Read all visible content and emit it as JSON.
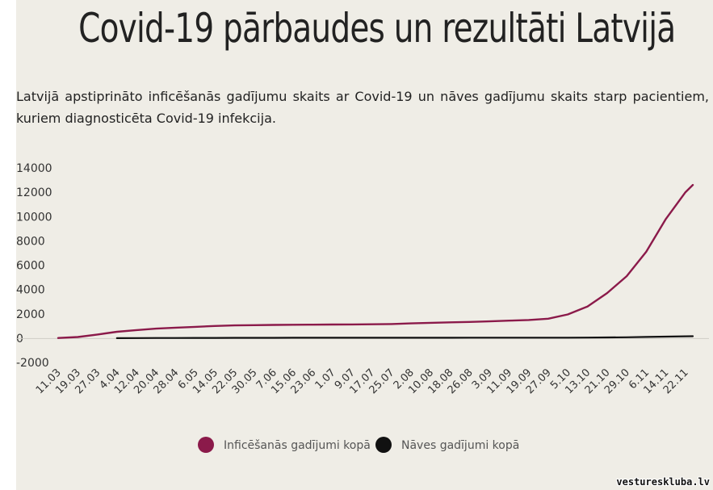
{
  "header": {
    "title": "Covid-19 pārbaudes un rezultāti Latvijā",
    "subtitle": "Latvijā apstiprināto inficēšanās gadījumu skaits ar Covid-19 un nāves gadījumu skaits starp pacientiem, kuriem diagnosticēta Covid-19 infekcija."
  },
  "watermark": "vestureskluba.lv",
  "chart_data": {
    "type": "line",
    "title": "Covid-19 pārbaudes un rezultāti Latvijā",
    "xlabel": "",
    "ylabel": "",
    "ylim": [
      -2000,
      14000
    ],
    "yticks": [
      "14000",
      "12000",
      "10000",
      "8000",
      "6000",
      "4000",
      "2000",
      "0",
      "-2000"
    ],
    "xticks": [
      "11.03",
      "19.03",
      "27.03",
      "4.04",
      "12.04",
      "20.04",
      "28.04",
      "6.05",
      "14.05",
      "22.05",
      "30.05",
      "7.06",
      "15.06",
      "23.06",
      "1.07",
      "9.07",
      "17.07",
      "25.07",
      "2.08",
      "10.08",
      "18.08",
      "26.08",
      "3.09",
      "11.09",
      "19.09",
      "27.09",
      "5.10",
      "13.10",
      "21.10",
      "29.10",
      "6.11",
      "14.11",
      "22.11"
    ],
    "grid": false,
    "legend_position": "bottom",
    "series": [
      {
        "name": "Inficēšanās gadījumi kopā",
        "color": "#8b1a4a",
        "x": [
          "11.03",
          "19.03",
          "27.03",
          "4.04",
          "12.04",
          "20.04",
          "28.04",
          "6.05",
          "14.05",
          "22.05",
          "30.05",
          "7.06",
          "15.06",
          "23.06",
          "1.07",
          "9.07",
          "17.07",
          "25.07",
          "2.08",
          "10.08",
          "18.08",
          "26.08",
          "3.09",
          "11.09",
          "19.09",
          "27.09",
          "5.10",
          "13.10",
          "21.10",
          "29.10",
          "6.11",
          "14.11",
          "22.11",
          "25.11"
        ],
        "values": [
          10,
          90,
          300,
          520,
          660,
          780,
          860,
          930,
          1000,
          1050,
          1070,
          1090,
          1100,
          1110,
          1120,
          1130,
          1140,
          1160,
          1210,
          1260,
          1300,
          1330,
          1380,
          1440,
          1490,
          1600,
          1950,
          2600,
          3700,
          5100,
          7100,
          9800,
          12000,
          12600
        ]
      },
      {
        "name": "Nāves gadījumi kopā",
        "color": "#111111",
        "x": [
          "11.03",
          "19.03",
          "27.03",
          "4.04",
          "12.04",
          "20.04",
          "28.04",
          "6.05",
          "14.05",
          "22.05",
          "30.05",
          "7.06",
          "15.06",
          "23.06",
          "1.07",
          "9.07",
          "17.07",
          "25.07",
          "2.08",
          "10.08",
          "18.08",
          "26.08",
          "3.09",
          "11.09",
          "19.09",
          "27.09",
          "5.10",
          "13.10",
          "21.10",
          "29.10",
          "6.11",
          "14.11",
          "22.11",
          "25.11"
        ],
        "values": [
          null,
          null,
          null,
          1,
          3,
          10,
          13,
          18,
          20,
          22,
          24,
          26,
          30,
          30,
          30,
          31,
          31,
          32,
          33,
          33,
          34,
          35,
          36,
          36,
          36,
          37,
          40,
          45,
          55,
          70,
          95,
          125,
          150,
          160
        ]
      }
    ]
  }
}
